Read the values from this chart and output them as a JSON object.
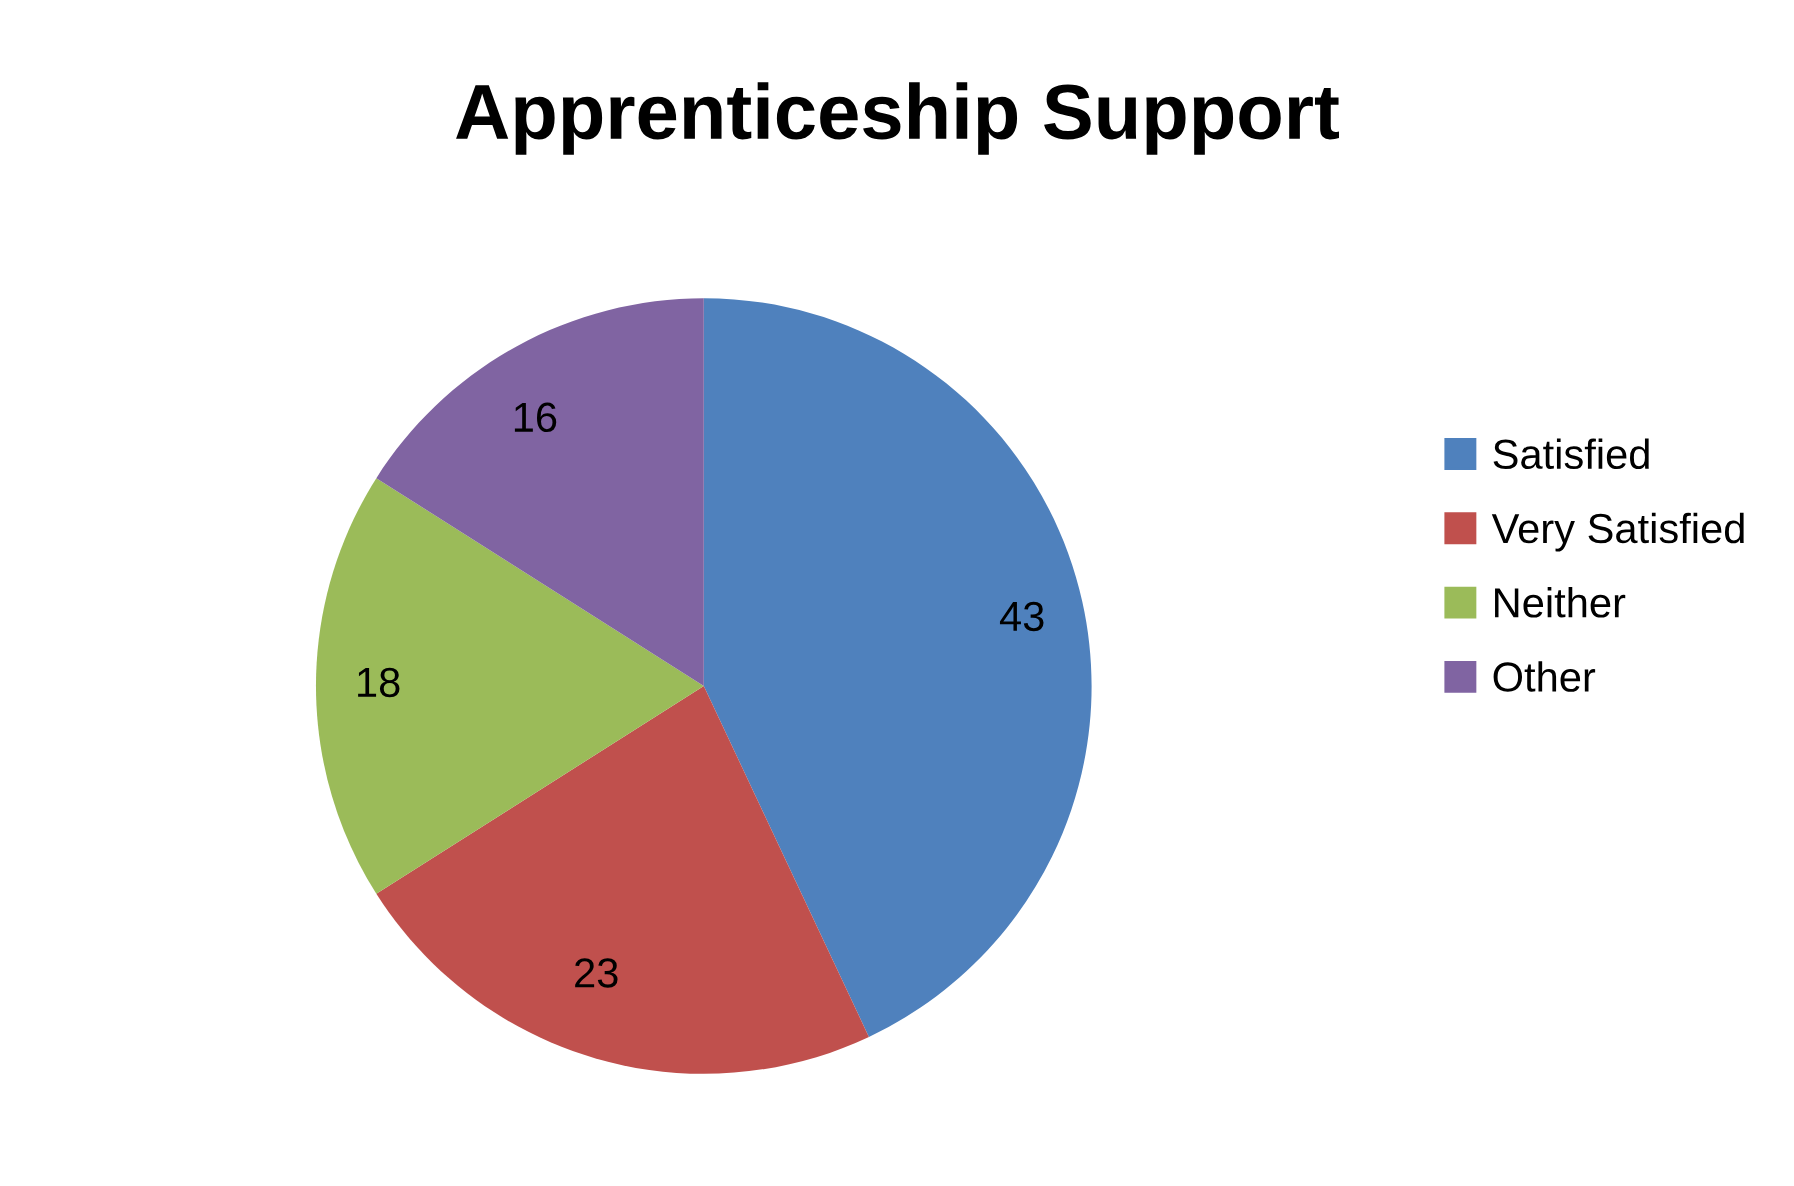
{
  "chart_data": {
    "type": "pie",
    "title": "Apprenticeship Support",
    "categories": [
      "Satisfied",
      "Very Satisfied",
      "Neither",
      "Other"
    ],
    "values": [
      43,
      23,
      18,
      16
    ],
    "colors": [
      "#4f81bd",
      "#c0504d",
      "#9bbb59",
      "#8064a2"
    ],
    "data_labels": true,
    "legend": "right"
  }
}
